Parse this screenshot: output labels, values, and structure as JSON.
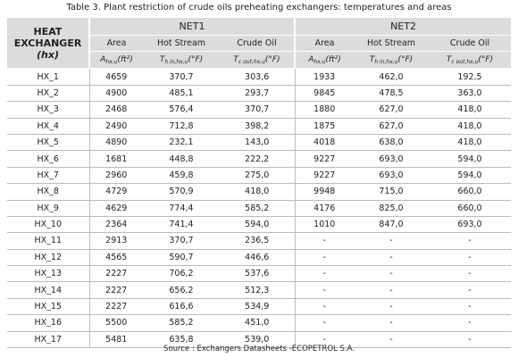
{
  "title": "Table 3. Plant restriction of crude oils preheating exchangers: temperatures and areas",
  "table": {
    "corner": {
      "label": "HEAT EXCHANGER",
      "symbol": "(hx)"
    },
    "groups": [
      "NET1",
      "NET2"
    ],
    "columns": [
      "Area",
      "Hot Stream",
      "Crude Oil",
      "Area",
      "Hot Stream",
      "Crude Oil"
    ],
    "units": [
      {
        "symbol": "A",
        "sub": "hx,u",
        "unit": "(ft²)"
      },
      {
        "symbol": "T",
        "sub": "h in,hx,u",
        "unit": "(°F)"
      },
      {
        "symbol": "T",
        "sub": "c out,hx,u",
        "unit": "(°F)"
      },
      {
        "symbol": "A",
        "sub": "hx,u",
        "unit": "(ft²)"
      },
      {
        "symbol": "T",
        "sub": "h in,hx,u",
        "unit": "(°F)"
      },
      {
        "symbol": "T",
        "sub": "c out,hx,u",
        "unit": "(°F)"
      }
    ],
    "rows": [
      [
        "HX_1",
        "4659",
        "370,7",
        "303,6",
        "1933",
        "462,0",
        "192,5"
      ],
      [
        "HX_2",
        "4900",
        "485,1",
        "293,7",
        "9845",
        "478,5",
        "363,0"
      ],
      [
        "HX_3",
        "2468",
        "576,4",
        "370,7",
        "1880",
        "627,0",
        "418,0"
      ],
      [
        "HX_4",
        "2490",
        "712,8",
        "398,2",
        "1875",
        "627,0",
        "418,0"
      ],
      [
        "HX_5",
        "4890",
        "232,1",
        "143,0",
        "4018",
        "638,0",
        "418,0"
      ],
      [
        "HX_6",
        "1681",
        "448,8",
        "222,2",
        "9227",
        "693,0",
        "594,0"
      ],
      [
        "HX_7",
        "2960",
        "459,8",
        "275,0",
        "9227",
        "693,0",
        "594,0"
      ],
      [
        "HX_8",
        "4729",
        "570,9",
        "418,0",
        "9948",
        "715,0",
        "660,0"
      ],
      [
        "HX_9",
        "4629",
        "774,4",
        "585,2",
        "4176",
        "825,0",
        "660,0"
      ],
      [
        "HX_10",
        "2364",
        "741,4",
        "594,0",
        "1010",
        "847,0",
        "693,0"
      ],
      [
        "HX_11",
        "2913",
        "370,7",
        "236,5",
        "-",
        "-",
        "-"
      ],
      [
        "HX_12",
        "4565",
        "590,7",
        "446,6",
        "-",
        "-",
        "-"
      ],
      [
        "HX_13",
        "2227",
        "706,2",
        "537,6",
        "-",
        "-",
        "-"
      ],
      [
        "HX_14",
        "2227",
        "656,2",
        "512,3",
        "-",
        "-",
        "-"
      ],
      [
        "HX_15",
        "2227",
        "616,6",
        "534,9",
        "-",
        "-",
        "-"
      ],
      [
        "HX_16",
        "5500",
        "585,2",
        "451,0",
        "-",
        "-",
        "-"
      ],
      [
        "HX_17",
        "5481",
        "635,8",
        "539,0",
        "-",
        "-",
        "-"
      ]
    ]
  },
  "source": "Source : Exchangers Datasheets -ECOPETROL S.A."
}
